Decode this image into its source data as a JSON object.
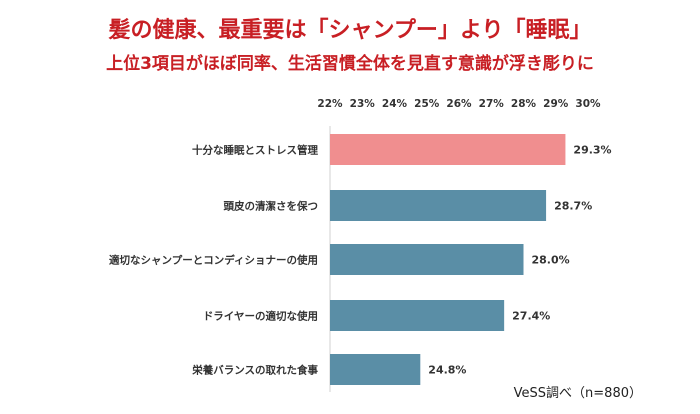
{
  "title": "髪の健康、最重要は「シャンプー」より「睡眠」",
  "subtitle": "上位3項目がほぼ同率、生活習慣全体を見直す意識が浮き彫りに",
  "source": "VeSS調べ（n=880）",
  "colors": {
    "title": "#c81f24",
    "highlight_bar": "#f08e8f",
    "bar": "#5a8ea6"
  },
  "chart_data": {
    "type": "bar",
    "orientation": "horizontal",
    "title": "髪の健康、最重要は「シャンプー」より「睡眠」",
    "subtitle": "上位3項目がほぼ同率、生活習慣全体を見直す意識が浮き彫りに",
    "categories": [
      "十分な睡眠とストレス管理",
      "頭皮の清潔さを保つ",
      "適切なシャンプーとコンディショナーの使用",
      "ドライヤーの適切な使用",
      "栄養バランスの取れた食事"
    ],
    "values": [
      29.3,
      28.7,
      28.0,
      27.4,
      24.8
    ],
    "value_labels": [
      "29.3%",
      "28.7%",
      "28.0%",
      "27.4%",
      "24.8%"
    ],
    "highlight_index": 0,
    "xlim": [
      22,
      30
    ],
    "xticks": [
      22,
      23,
      24,
      25,
      26,
      27,
      28,
      29,
      30
    ],
    "xtick_labels": [
      "22%",
      "23%",
      "24%",
      "25%",
      "26%",
      "27%",
      "28%",
      "29%",
      "30%"
    ],
    "grid": false,
    "axis_position": "top"
  }
}
